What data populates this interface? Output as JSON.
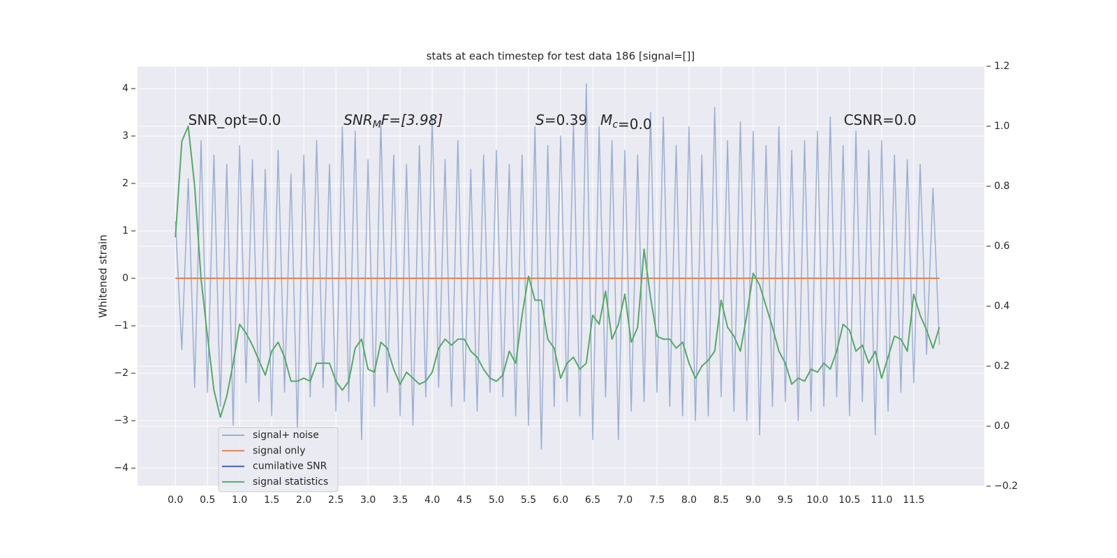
{
  "chart_data": {
    "type": "line",
    "title": "stats at each timestep for test data 186 [signal=[]]",
    "ylabel": "Whitened strain",
    "x": [
      0.0,
      0.1,
      0.2,
      0.3,
      0.4,
      0.5,
      0.6,
      0.7,
      0.8,
      0.9,
      1.0,
      1.1,
      1.2,
      1.3,
      1.4,
      1.5,
      1.6,
      1.7,
      1.8,
      1.9,
      2.0,
      2.1,
      2.2,
      2.3,
      2.4,
      2.5,
      2.6,
      2.7,
      2.8,
      2.9,
      3.0,
      3.1,
      3.2,
      3.3,
      3.4,
      3.5,
      3.6,
      3.7,
      3.8,
      3.9,
      4.0,
      4.1,
      4.2,
      4.3,
      4.4,
      4.5,
      4.6,
      4.7,
      4.8,
      4.9,
      5.0,
      5.1,
      5.2,
      5.3,
      5.4,
      5.5,
      5.6,
      5.7,
      5.8,
      5.9,
      6.0,
      6.1,
      6.2,
      6.3,
      6.4,
      6.5,
      6.6,
      6.7,
      6.8,
      6.9,
      7.0,
      7.1,
      7.2,
      7.3,
      7.4,
      7.5,
      7.6,
      7.7,
      7.8,
      7.9,
      8.0,
      8.1,
      8.2,
      8.3,
      8.4,
      8.5,
      8.6,
      8.7,
      8.8,
      8.9,
      9.0,
      9.1,
      9.2,
      9.3,
      9.4,
      9.5,
      9.6,
      9.7,
      9.8,
      9.9,
      10.0,
      10.1,
      10.2,
      10.3,
      10.4,
      10.5,
      10.6,
      10.7,
      10.8,
      10.9,
      11.0,
      11.1,
      11.2,
      11.3,
      11.4,
      11.5,
      11.6,
      11.7,
      11.8,
      11.9
    ],
    "series": [
      {
        "name": "signal+ noise",
        "color": "#4c72b0",
        "opacity": 0.5,
        "values": [
          1.2,
          -1.5,
          2.1,
          -2.3,
          2.9,
          -2.4,
          2.6,
          -2.7,
          2.4,
          -3.1,
          2.8,
          -2.2,
          2.5,
          -2.6,
          2.3,
          -2.9,
          2.7,
          -2.4,
          2.2,
          -3.2,
          2.6,
          -2.5,
          2.9,
          -2.3,
          2.4,
          -2.8,
          3.2,
          -2.6,
          3.1,
          -3.4,
          2.5,
          -2.7,
          3.3,
          -2.4,
          2.6,
          -2.9,
          2.4,
          -3.1,
          2.8,
          -2.5,
          3.4,
          -2.3,
          2.5,
          -2.7,
          2.9,
          -2.6,
          2.3,
          -2.8,
          2.6,
          -2.4,
          2.7,
          -2.5,
          2.4,
          -2.9,
          2.6,
          -3.1,
          3.2,
          -3.6,
          2.8,
          -2.7,
          3.0,
          -2.6,
          3.3,
          -2.9,
          4.1,
          -3.4,
          3.2,
          -2.5,
          2.9,
          -3.4,
          2.7,
          -2.8,
          2.6,
          -2.6,
          3.5,
          -2.4,
          3.4,
          -2.7,
          2.8,
          -2.9,
          3.2,
          -3.0,
          2.6,
          -2.9,
          3.6,
          -2.5,
          2.9,
          -2.8,
          3.3,
          -3.0,
          3.1,
          -3.3,
          2.8,
          -2.7,
          3.2,
          -2.6,
          2.7,
          -3.0,
          2.9,
          -2.8,
          3.1,
          -2.7,
          3.4,
          -2.5,
          2.8,
          -2.9,
          3.1,
          -2.6,
          2.7,
          -3.3,
          2.9,
          -2.8,
          2.6,
          -2.4,
          2.5,
          -2.2,
          2.4,
          -1.6,
          1.9,
          -1.4
        ]
      },
      {
        "name": "signal only",
        "color": "#dd8452",
        "x": [
          0.0,
          11.9
        ],
        "values": [
          0,
          0
        ]
      },
      {
        "name": "cumilative SNR",
        "color": "#3d5fa8"
      },
      {
        "name": "signal statistics",
        "color": "#55a868",
        "axis": "y2",
        "values": [
          0.63,
          0.95,
          1.0,
          0.8,
          0.49,
          0.3,
          0.12,
          0.03,
          0.1,
          0.21,
          0.34,
          0.31,
          0.27,
          0.22,
          0.17,
          0.25,
          0.28,
          0.23,
          0.15,
          0.15,
          0.16,
          0.15,
          0.21,
          0.21,
          0.21,
          0.15,
          0.12,
          0.15,
          0.26,
          0.29,
          0.19,
          0.18,
          0.28,
          0.26,
          0.19,
          0.14,
          0.18,
          0.16,
          0.14,
          0.15,
          0.18,
          0.26,
          0.29,
          0.27,
          0.29,
          0.29,
          0.25,
          0.23,
          0.19,
          0.16,
          0.15,
          0.17,
          0.25,
          0.21,
          0.37,
          0.5,
          0.42,
          0.42,
          0.29,
          0.26,
          0.16,
          0.21,
          0.23,
          0.19,
          0.21,
          0.37,
          0.34,
          0.45,
          0.29,
          0.34,
          0.44,
          0.28,
          0.33,
          0.59,
          0.43,
          0.3,
          0.29,
          0.29,
          0.26,
          0.28,
          0.21,
          0.16,
          0.2,
          0.22,
          0.25,
          0.42,
          0.33,
          0.3,
          0.25,
          0.37,
          0.51,
          0.47,
          0.4,
          0.33,
          0.25,
          0.21,
          0.14,
          0.16,
          0.15,
          0.19,
          0.18,
          0.21,
          0.19,
          0.25,
          0.34,
          0.32,
          0.25,
          0.27,
          0.21,
          0.25,
          0.16,
          0.23,
          0.3,
          0.29,
          0.25,
          0.44,
          0.37,
          0.32,
          0.26,
          0.33
        ]
      }
    ],
    "xlim": [
      -0.59,
      12.6
    ],
    "ylim": [
      -4.38,
      4.47
    ],
    "y2lim": [
      -0.2,
      1.2
    ],
    "xticks": [
      {
        "value": 0,
        "label": "0.0"
      },
      0.5,
      {
        "value": 1,
        "label": "1.0"
      },
      1.5,
      {
        "value": 2,
        "label": "2.0"
      },
      2.5,
      {
        "value": 3,
        "label": "3.0"
      },
      3.5,
      {
        "value": 4,
        "label": "4.0"
      },
      4.5,
      {
        "value": 5,
        "label": "5.0"
      },
      5.5,
      {
        "value": 6,
        "label": "6.0"
      },
      6.5,
      {
        "value": 7,
        "label": "7.0"
      },
      7.5,
      {
        "value": 8,
        "label": "8.0"
      },
      8.5,
      {
        "value": 9,
        "label": "9.0"
      },
      9.5,
      {
        "value": 10,
        "label": "10.0"
      },
      10.5,
      {
        "value": 11,
        "label": "11.0"
      },
      11.5
    ],
    "yticks": [
      {
        "value": -4,
        "label": "−4"
      },
      {
        "value": -3,
        "label": "−3"
      },
      {
        "value": -2,
        "label": "−2"
      },
      {
        "value": -1,
        "label": "−1"
      },
      0,
      1,
      2,
      3,
      4
    ],
    "y2ticks": [
      {
        "value": -0.2,
        "label": "−0.2"
      },
      {
        "value": 0,
        "label": "0.0"
      },
      0.2,
      0.4,
      0.6,
      0.8,
      {
        "value": 1,
        "label": "1.0"
      },
      1.2
    ],
    "grid": true,
    "legend": "lower left",
    "annotations": [
      {
        "x": 0.2,
        "y": 3.32,
        "parts": [
          {
            "text": "SNR_opt=0.0"
          }
        ]
      },
      {
        "x": 2.62,
        "y": 3.32,
        "parts": [
          {
            "text": "SNR",
            "style": "italic"
          },
          {
            "text": "M",
            "style": "sub"
          },
          {
            "text": "F=[3.98]",
            "style": "italic-head"
          }
        ]
      },
      {
        "x": 5.61,
        "y": 3.32,
        "parts": [
          {
            "text": "S",
            "style": "italic"
          },
          {
            "text": "=0.39"
          }
        ]
      },
      {
        "x": 6.62,
        "y": 3.32,
        "parts": [
          {
            "text": "M",
            "style": "italic"
          },
          {
            "text": "c",
            "style": "sub"
          },
          {
            "text": "=0.0"
          }
        ]
      },
      {
        "x": 10.41,
        "y": 3.32,
        "parts": [
          {
            "text": "CSNR=0.0"
          }
        ]
      }
    ]
  }
}
